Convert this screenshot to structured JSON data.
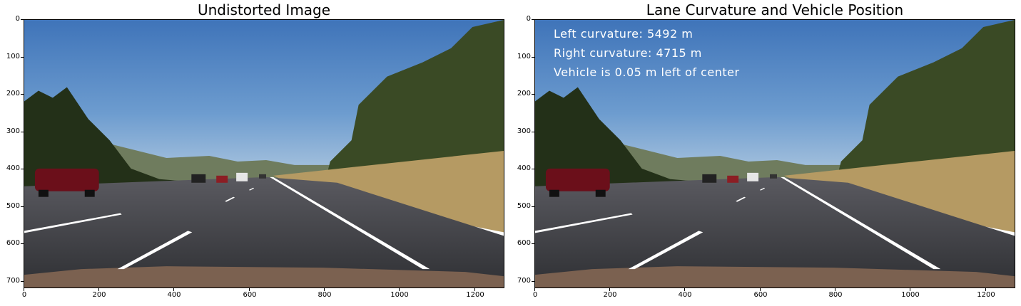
{
  "left_panel": {
    "title": "Undistorted Image",
    "y_ticks": [
      "0",
      "100",
      "200",
      "300",
      "400",
      "500",
      "600",
      "700"
    ],
    "x_ticks": [
      "0",
      "200",
      "400",
      "600",
      "800",
      "1000",
      "1200"
    ]
  },
  "right_panel": {
    "title": "Lane Curvature and Vehicle Position",
    "y_ticks": [
      "0",
      "100",
      "200",
      "300",
      "400",
      "500",
      "600",
      "700"
    ],
    "x_ticks": [
      "0",
      "200",
      "400",
      "600",
      "800",
      "1000",
      "1200"
    ],
    "overlay": {
      "left_curvature": "Left curvature: 5492 m",
      "right_curvature": "Right curvature: 4715 m",
      "vehicle_position": "Vehicle is 0.05 m left of center"
    }
  },
  "image": {
    "x_range": [
      0,
      1280
    ],
    "y_range": [
      0,
      720
    ]
  }
}
